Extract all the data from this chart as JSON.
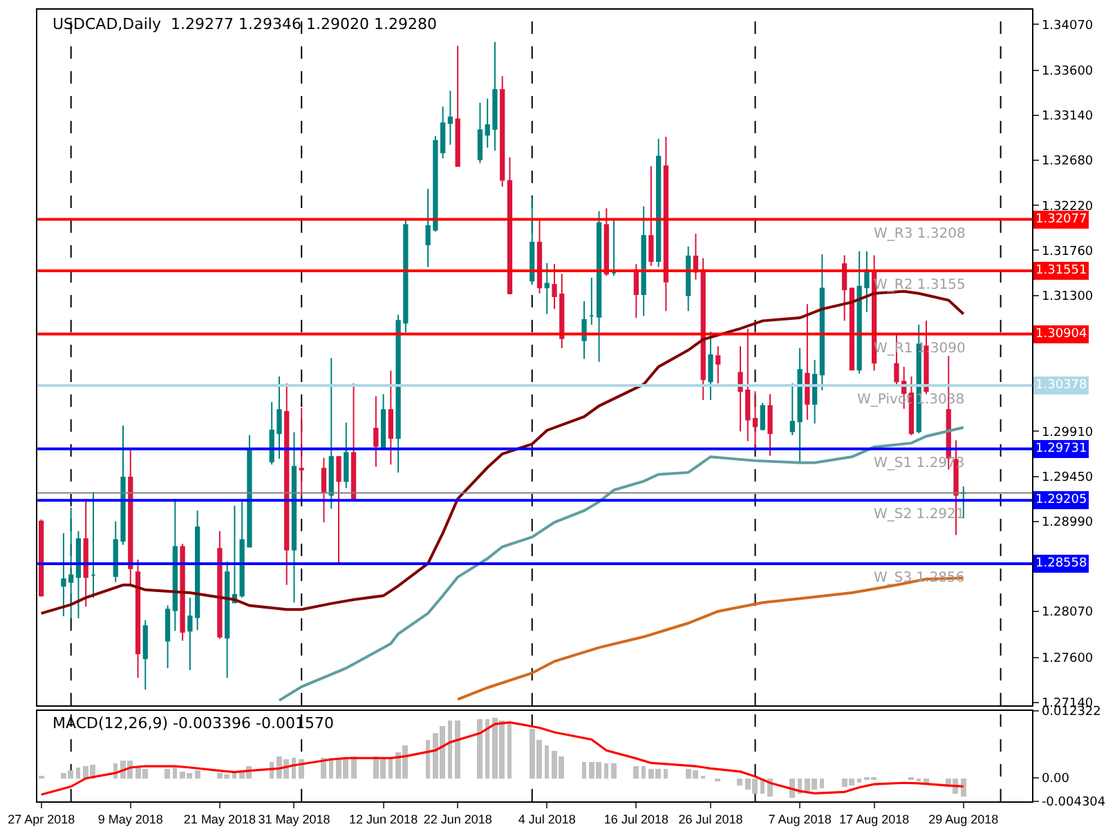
{
  "chart_data": [
    {
      "type": "candlestick",
      "title": "USDCAD,Daily  1.29277 1.29346 1.29020 1.29280",
      "tick_labels": "y",
      "grid": false,
      "colors": [
        "#dc143c",
        "#008080",
        "#008080",
        "#008080",
        "#dc143c",
        "#008080",
        "#008080",
        "#008080",
        "#dc143c",
        "#dc143c",
        "#008080",
        "#008080",
        "#008080",
        "#dc143c",
        "#008080",
        "#008080",
        "#dc143c",
        "#008080",
        "#008080",
        "#008080",
        "#008080",
        "#008080",
        "#008080",
        "#dc143c",
        "#008080",
        "#dc143c",
        "#dc143c",
        "#008080",
        "#dc143c",
        "#008080",
        "#dc143c",
        "#dc143c",
        "#008080",
        "#dc143c",
        "#008080",
        "#008080",
        "#008080",
        "#008080",
        "#008080",
        "#008080",
        "#dc143c",
        "#008080",
        "#008080",
        "#008080",
        "#dc143c",
        "#dc143c",
        "#008080",
        "#dc143c",
        "#008080",
        "#dc143c",
        "#dc143c",
        "#008080",
        "#008080",
        "#008080",
        "#dc143c",
        "#008080",
        "#dc143c",
        "#008080",
        "#dc143c",
        "#008080",
        "#dc143c",
        "#008080",
        "#dc143c",
        "#dc143c",
        "#008080",
        "#dc143c",
        "#dc143c",
        "#dc143c",
        "#dc143c",
        "#008080",
        "#dc143c",
        "#008080",
        "#008080",
        "#dc143c",
        "#008080",
        "#008080",
        "#dc143c",
        "#dc143c",
        "#008080",
        "#008080",
        "#dc143c",
        "#dc143c",
        "#dc143c",
        "#dc143c",
        "#008080",
        "#dc143c",
        "#dc143c",
        "#dc143c",
        "#008080"
      ],
      "annotations": [
        {
          "text": "1.32077",
          "y": 1.32077
        },
        {
          "text": "1.31551",
          "y": 1.31551
        },
        {
          "text": "1.30904",
          "y": 1.30904
        },
        {
          "text": "1.30378",
          "y": 1.30378
        },
        {
          "text": "1.29731",
          "y": 1.29731
        },
        {
          "text": "1.29205",
          "y": 1.29205
        },
        {
          "text": "1.28558",
          "y": 1.28558
        }
      ],
      "x": [
        "2018-04-27",
        "2018-04-30",
        "2018-05-01",
        "2018-05-02",
        "2018-05-03",
        "2018-05-04",
        "2018-05-07",
        "2018-05-08",
        "2018-05-09",
        "2018-05-10",
        "2018-05-11",
        "2018-05-14",
        "2018-05-15",
        "2018-05-16",
        "2018-05-17",
        "2018-05-18",
        "2018-05-21",
        "2018-05-22",
        "2018-05-23",
        "2018-05-24",
        "2018-05-25",
        "2018-05-28",
        "2018-05-29",
        "2018-05-30",
        "2018-05-31",
        "2018-06-01",
        "2018-06-04",
        "2018-06-05",
        "2018-06-06",
        "2018-06-07",
        "2018-06-08",
        "2018-06-11",
        "2018-06-12",
        "2018-06-13",
        "2018-06-14",
        "2018-06-15",
        "2018-06-18",
        "2018-06-19",
        "2018-06-20",
        "2018-06-21",
        "2018-06-22",
        "2018-06-25",
        "2018-06-26",
        "2018-06-27",
        "2018-06-28",
        "2018-06-29",
        "2018-07-02",
        "2018-07-03",
        "2018-07-04",
        "2018-07-05",
        "2018-07-06",
        "2018-07-09",
        "2018-07-10",
        "2018-07-11",
        "2018-07-12",
        "2018-07-13",
        "2018-07-16",
        "2018-07-17",
        "2018-07-18",
        "2018-07-19",
        "2018-07-20",
        "2018-07-23",
        "2018-07-24",
        "2018-07-25",
        "2018-07-26",
        "2018-07-27",
        "2018-07-30",
        "2018-07-31",
        "2018-08-01",
        "2018-08-02",
        "2018-08-03",
        "2018-08-06",
        "2018-08-07",
        "2018-08-08",
        "2018-08-09",
        "2018-08-10",
        "2018-08-13",
        "2018-08-14",
        "2018-08-15",
        "2018-08-16",
        "2018-08-17",
        "2018-08-20",
        "2018-08-21",
        "2018-08-22",
        "2018-08-23",
        "2018-08-24",
        "2018-08-27",
        "2018-08-28",
        "2018-08-29"
      ],
      "ohlc": [
        [
          1.2899,
          1.2901,
          1.2822,
          1.2823
        ],
        [
          1.2833,
          1.2887,
          1.2802,
          1.284
        ],
        [
          1.2837,
          1.2913,
          1.28,
          1.2844
        ],
        [
          1.2842,
          1.2889,
          1.28,
          1.2881
        ],
        [
          1.2881,
          1.2922,
          1.2812,
          1.2842
        ],
        [
          1.2844,
          1.2929,
          1.2821,
          1.2844
        ],
        [
          1.2843,
          1.2899,
          1.2837,
          1.288
        ],
        [
          1.2879,
          1.2997,
          1.2875,
          1.2944
        ],
        [
          1.2944,
          1.2974,
          1.2835,
          1.2851
        ],
        [
          1.2847,
          1.286,
          1.2739,
          1.2764
        ],
        [
          1.2759,
          1.2798,
          1.2727,
          1.2792
        ],
        [
          1.2777,
          1.2813,
          1.2749,
          1.2809
        ],
        [
          1.2808,
          1.2922,
          1.2787,
          1.2873
        ],
        [
          1.2873,
          1.2876,
          1.2777,
          1.2786
        ],
        [
          1.2787,
          1.2821,
          1.2747,
          1.2802
        ],
        [
          1.2801,
          1.291,
          1.2788,
          1.2893
        ],
        [
          1.2871,
          1.2889,
          1.2779,
          1.2781
        ],
        [
          1.278,
          1.2858,
          1.2739,
          1.2847
        ],
        [
          1.2816,
          1.2915,
          1.2816,
          1.2824
        ],
        [
          1.2823,
          1.2919,
          1.2821,
          1.288
        ],
        [
          1.2873,
          1.2987,
          1.2873,
          1.2973
        ],
        [
          1.296,
          1.3021,
          1.2957,
          1.2992
        ],
        [
          1.2989,
          1.3047,
          1.2963,
          1.3013
        ],
        [
          1.3011,
          1.304,
          1.2834,
          1.287
        ],
        [
          1.287,
          1.299,
          1.2816,
          1.2955
        ],
        [
          1.2953,
          1.3015,
          1.2924,
          1.2952
        ],
        [
          1.2953,
          1.2964,
          1.2898,
          1.2929
        ],
        [
          1.2926,
          1.3066,
          1.2912,
          1.2965
        ],
        [
          1.2965,
          1.2965,
          1.2856,
          1.294
        ],
        [
          1.294,
          1.3,
          1.2933,
          1.2969
        ],
        [
          1.2969,
          1.304,
          1.292,
          1.292
        ],
        [
          1.2994,
          1.3027,
          1.2955,
          1.2976
        ],
        [
          1.2974,
          1.3029,
          1.2973,
          1.3013
        ],
        [
          1.3013,
          1.3053,
          1.2957,
          1.2984
        ],
        [
          1.2984,
          1.311,
          1.2949,
          1.3104
        ],
        [
          1.3102,
          1.3209,
          1.3092,
          1.3202
        ],
        [
          1.3182,
          1.3239,
          1.3159,
          1.3201
        ],
        [
          1.3197,
          1.3293,
          1.3195,
          1.3288
        ],
        [
          1.3276,
          1.3323,
          1.327,
          1.3306
        ],
        [
          1.3306,
          1.3339,
          1.3284,
          1.3312
        ],
        [
          1.331,
          1.3385,
          1.3262,
          1.3262
        ],
        [
          1.3269,
          1.3327,
          1.3265,
          1.3299
        ],
        [
          1.3294,
          1.3331,
          1.3281,
          1.3304
        ],
        [
          1.33,
          1.3389,
          1.3278,
          1.334
        ],
        [
          1.334,
          1.3354,
          1.3241,
          1.3248
        ],
        [
          1.3247,
          1.3271,
          1.3131,
          1.3132
        ],
        [
          1.3145,
          1.323,
          1.3141,
          1.3184
        ],
        [
          1.3184,
          1.3208,
          1.3132,
          1.3138
        ],
        [
          1.3138,
          1.3163,
          1.3111,
          1.3142
        ],
        [
          1.3141,
          1.3162,
          1.3116,
          1.3129
        ],
        [
          1.3131,
          1.3152,
          1.3076,
          1.3086
        ],
        [
          1.3084,
          1.3124,
          1.3065,
          1.3105
        ],
        [
          1.3109,
          1.3148,
          1.31,
          1.3109
        ],
        [
          1.3108,
          1.3216,
          1.3062,
          1.3204
        ],
        [
          1.3202,
          1.3219,
          1.315,
          1.3152
        ],
        [
          1.3153,
          1.3209,
          1.315,
          1.3153
        ],
        [
          1.3156,
          1.3162,
          1.3107,
          1.3131
        ],
        [
          1.3131,
          1.3221,
          1.3109,
          1.3191
        ],
        [
          1.3191,
          1.3262,
          1.316,
          1.3165
        ],
        [
          1.3165,
          1.329,
          1.3159,
          1.3272
        ],
        [
          1.3262,
          1.3292,
          1.3114,
          1.3144
        ],
        [
          1.313,
          1.318,
          1.3114,
          1.317
        ],
        [
          1.317,
          1.3193,
          1.3146,
          1.3154
        ],
        [
          1.3156,
          1.3168,
          1.3023,
          1.3044
        ],
        [
          1.3042,
          1.3093,
          1.3023,
          1.3069
        ],
        [
          1.3068,
          1.3078,
          1.304,
          1.306
        ],
        [
          1.3051,
          1.3078,
          1.2991,
          1.3032
        ],
        [
          1.3033,
          1.3096,
          1.2981,
          1.3003
        ],
        [
          1.3004,
          1.3032,
          1.2974,
          1.2996
        ],
        [
          1.2993,
          1.302,
          1.2992,
          1.3017
        ],
        [
          1.3017,
          1.3029,
          1.2966,
          1.2989
        ],
        [
          1.2991,
          1.304,
          1.2987,
          1.3001
        ],
        [
          1.3001,
          1.3076,
          1.296,
          1.3054
        ],
        [
          1.305,
          1.3121,
          1.3003,
          1.3019
        ],
        [
          1.3019,
          1.3064,
          1.2999,
          1.3049
        ],
        [
          1.3049,
          1.3172,
          1.3033,
          1.3137
        ],
        [
          1.3162,
          1.3171,
          1.3104,
          1.3136
        ],
        [
          1.3137,
          1.3138,
          1.3054,
          1.3054
        ],
        [
          1.3054,
          1.3175,
          1.305,
          1.3139
        ],
        [
          1.3138,
          1.3175,
          1.3113,
          1.3156
        ],
        [
          1.3153,
          1.3171,
          1.3053,
          1.3061
        ],
        [
          1.306,
          1.309,
          1.3039,
          1.3042
        ],
        [
          1.3042,
          1.3057,
          1.3014,
          1.303
        ],
        [
          1.303,
          1.3047,
          1.2987,
          1.2989
        ],
        [
          1.2991,
          1.31,
          1.2989,
          1.308
        ],
        [
          1.3078,
          1.3104,
          1.3029,
          1.3032
        ],
        [
          1.3013,
          1.3068,
          1.2952,
          1.2964
        ],
        [
          1.2962,
          1.2982,
          1.2885,
          1.2926
        ],
        [
          1.29277,
          1.29346,
          1.2902,
          1.2928
        ]
      ],
      "series": [
        {
          "type": "line",
          "color": "#800000",
          "x": [
            "2018-04-27",
            "2018-05-01",
            "2018-05-03",
            "2018-05-08",
            "2018-05-09",
            "2018-05-11",
            "2018-05-17",
            "2018-05-23",
            "2018-05-25",
            "2018-05-30",
            "2018-06-01",
            "2018-06-05",
            "2018-06-08",
            "2018-06-12",
            "2018-06-14",
            "2018-06-18",
            "2018-06-20",
            "2018-06-22",
            "2018-06-26",
            "2018-06-28",
            "2018-07-02",
            "2018-07-04",
            "2018-07-09",
            "2018-07-11",
            "2018-07-17",
            "2018-07-19",
            "2018-07-23",
            "2018-07-25",
            "2018-07-30",
            "2018-08-02",
            "2018-08-07",
            "2018-08-10",
            "2018-08-14",
            "2018-08-17",
            "2018-08-21",
            "2018-08-23",
            "2018-08-27",
            "2018-08-29"
          ],
          "values": [
            1.2805,
            1.2814,
            1.2821,
            1.2834,
            1.2834,
            1.2829,
            1.2826,
            1.2819,
            1.2813,
            1.2809,
            1.2809,
            1.2815,
            1.2819,
            1.2823,
            1.2833,
            1.2856,
            1.2887,
            1.2922,
            1.2954,
            1.2968,
            1.2978,
            1.2992,
            1.3006,
            1.3017,
            1.3039,
            1.3057,
            1.3074,
            1.3085,
            1.3096,
            1.3104,
            1.3107,
            1.3116,
            1.3123,
            1.3132,
            1.3134,
            1.3132,
            1.3125,
            1.3111
          ]
        },
        {
          "type": "line",
          "color": "#5f9ea0",
          "x": [
            "2018-05-29",
            "2018-06-01",
            "2018-06-07",
            "2018-06-13",
            "2018-06-14",
            "2018-06-18",
            "2018-06-20",
            "2018-06-22",
            "2018-06-26",
            "2018-06-28",
            "2018-07-02",
            "2018-07-05",
            "2018-07-09",
            "2018-07-11",
            "2018-07-13",
            "2018-07-17",
            "2018-07-19",
            "2018-07-23",
            "2018-07-26",
            "2018-08-01",
            "2018-08-07",
            "2018-08-09",
            "2018-08-14",
            "2018-08-17",
            "2018-08-22",
            "2018-08-24",
            "2018-08-29"
          ],
          "values": [
            1.2716,
            1.273,
            1.2749,
            1.2774,
            1.2784,
            1.2805,
            1.2823,
            1.2842,
            1.2861,
            1.2873,
            1.2883,
            1.2898,
            1.291,
            1.2919,
            1.2931,
            1.294,
            1.2947,
            1.2949,
            1.2965,
            1.2961,
            1.2959,
            1.2959,
            1.2965,
            1.2975,
            1.2979,
            1.2986,
            1.2995
          ]
        },
        {
          "type": "line",
          "color": "#d2691e",
          "x": [
            "2018-06-22",
            "2018-06-26",
            "2018-07-02",
            "2018-07-05",
            "2018-07-11",
            "2018-07-17",
            "2018-07-23",
            "2018-07-27",
            "2018-08-02",
            "2018-08-08",
            "2018-08-14",
            "2018-08-20",
            "2018-08-24",
            "2018-08-29"
          ],
          "values": [
            1.2717,
            1.2729,
            1.2744,
            1.2756,
            1.277,
            1.2781,
            1.2795,
            1.2807,
            1.2816,
            1.2821,
            1.2826,
            1.2834,
            1.284,
            1.2841
          ]
        }
      ],
      "xlim": [
        "2018-04-26T12:00",
        "2018-09-07T06:00"
      ],
      "ylim": [
        1.2711,
        1.3422
      ],
      "yticks": [
        {
          "value": 1.3407,
          "label": "1.34070"
        },
        {
          "value": 1.336,
          "label": "1.33600"
        },
        {
          "value": 1.3314,
          "label": "1.33140"
        },
        {
          "value": 1.3268,
          "label": "1.32680"
        },
        {
          "value": 1.3222,
          "label": "1.32220"
        },
        {
          "value": 1.3176,
          "label": "1.31760"
        },
        {
          "value": 1.313,
          "label": "1.31300"
        },
        {
          "value": 1.2991,
          "label": "1.29910"
        },
        {
          "value": 1.2945,
          "label": "1.29450"
        },
        {
          "value": 1.2899,
          "label": "1.28990"
        },
        {
          "value": 1.2807,
          "label": "1.28070"
        },
        {
          "value": 1.276,
          "label": "1.27600"
        },
        {
          "value": 1.2714,
          "label": "1.27140"
        }
      ],
      "ref_lines": [
        {
          "axis": "y",
          "value": 1.32077,
          "label": "W_R3 1.3208",
          "color": "#ff0000"
        },
        {
          "axis": "y",
          "value": 1.31551,
          "label": "W_R2 1.3155",
          "color": "#ff0000"
        },
        {
          "axis": "y",
          "value": 1.30904,
          "label": "W_R1 1.3090",
          "color": "#ff0000"
        },
        {
          "axis": "y",
          "value": 1.30378,
          "label": "W_Pivot 1.3038",
          "color": "#add8e6"
        },
        {
          "axis": "y",
          "value": 1.29731,
          "label": "W_S1 1.2973",
          "color": "#0000ff"
        },
        {
          "axis": "y",
          "value": 1.29205,
          "label": "W_S2 1.2921",
          "color": "#0000ff"
        },
        {
          "axis": "y",
          "value": 1.28558,
          "label": "W_S3 1.2856",
          "color": "#0000ff"
        },
        {
          "axis": "y",
          "value": 1.2928,
          "color": "#808080"
        },
        {
          "axis": "x",
          "value": "2018-05-01",
          "color": "#000000",
          "line_style": "dashed"
        },
        {
          "axis": "x",
          "value": "2018-06-01",
          "color": "#000000",
          "line_style": "dashed"
        },
        {
          "axis": "x",
          "value": "2018-07-02",
          "color": "#000000",
          "line_style": "dashed"
        },
        {
          "axis": "x",
          "value": "2018-08-01",
          "color": "#000000",
          "line_style": "dashed"
        },
        {
          "axis": "x",
          "value": "2018-09-03",
          "color": "#000000",
          "line_style": "dashed"
        }
      ]
    },
    {
      "type": "bar",
      "title": "MACD(12,26,9) -0.003396 -0.001570",
      "grid": false,
      "x": [
        "2018-04-27",
        "2018-04-30",
        "2018-05-01",
        "2018-05-02",
        "2018-05-03",
        "2018-05-04",
        "2018-05-07",
        "2018-05-08",
        "2018-05-09",
        "2018-05-10",
        "2018-05-11",
        "2018-05-14",
        "2018-05-15",
        "2018-05-16",
        "2018-05-17",
        "2018-05-18",
        "2018-05-21",
        "2018-05-22",
        "2018-05-23",
        "2018-05-24",
        "2018-05-25",
        "2018-05-28",
        "2018-05-29",
        "2018-05-30",
        "2018-05-31",
        "2018-06-01",
        "2018-06-04",
        "2018-06-05",
        "2018-06-06",
        "2018-06-07",
        "2018-06-08",
        "2018-06-11",
        "2018-06-12",
        "2018-06-13",
        "2018-06-14",
        "2018-06-15",
        "2018-06-18",
        "2018-06-19",
        "2018-06-20",
        "2018-06-21",
        "2018-06-22",
        "2018-06-25",
        "2018-06-26",
        "2018-06-27",
        "2018-06-28",
        "2018-06-29",
        "2018-07-02",
        "2018-07-03",
        "2018-07-04",
        "2018-07-05",
        "2018-07-06",
        "2018-07-09",
        "2018-07-10",
        "2018-07-11",
        "2018-07-12",
        "2018-07-13",
        "2018-07-16",
        "2018-07-17",
        "2018-07-18",
        "2018-07-19",
        "2018-07-20",
        "2018-07-23",
        "2018-07-24",
        "2018-07-25",
        "2018-07-26",
        "2018-07-27",
        "2018-07-30",
        "2018-07-31",
        "2018-08-01",
        "2018-08-02",
        "2018-08-03",
        "2018-08-06",
        "2018-08-07",
        "2018-08-08",
        "2018-08-09",
        "2018-08-10",
        "2018-08-13",
        "2018-08-14",
        "2018-08-15",
        "2018-08-16",
        "2018-08-17",
        "2018-08-20",
        "2018-08-21",
        "2018-08-22",
        "2018-08-23",
        "2018-08-24",
        "2018-08-27",
        "2018-08-28",
        "2018-08-29"
      ],
      "series": [
        {
          "type": "bar",
          "color": "#c0c0c0",
          "values": [
            0.00025,
            0.00091,
            0.00149,
            0.00191,
            0.00216,
            0.00232,
            0.00274,
            0.00315,
            0.00315,
            0.00216,
            0.00158,
            0.00158,
            0.00199,
            0.00116,
            0.00091,
            0.00149,
            0.00091,
            0.00066,
            0.00116,
            0.00149,
            0.00216,
            0.00299,
            0.00398,
            0.00357,
            0.00365,
            0.00357,
            0.00365,
            0.00365,
            0.00382,
            0.00382,
            0.00398,
            0.00398,
            0.00365,
            0.00382,
            0.00465,
            0.00589,
            0.00689,
            0.00838,
            0.00946,
            0.01046,
            0.01046,
            0.01071,
            0.01087,
            0.01112,
            0.01062,
            0.01004,
            0.00905,
            0.00689,
            0.00606,
            0.00506,
            0.00407,
            0.00299,
            0.00299,
            0.00299,
            0.00274,
            0.00257,
            0.00216,
            0.00216,
            0.00174,
            0.00174,
            0.00174,
            0.00174,
            0.00133,
            0.0005,
            null,
            -0.00058,
            -0.00141,
            -0.00224,
            -0.00282,
            -0.00299,
            -0.0034,
            -0.00365,
            -0.00282,
            -0.00241,
            -0.00224,
            -0.00199,
            -0.00158,
            -0.00141,
            -0.00075,
            -0.00033,
            -0.00033,
            null,
            null,
            -0.00033,
            -0.00058,
            -0.00116,
            -0.00174,
            -0.00282,
            -0.003396
          ]
        },
        {
          "type": "line",
          "color": "#ff0000",
          "x": [
            "2018-04-27",
            "2018-05-01",
            "2018-05-03",
            "2018-05-07",
            "2018-05-09",
            "2018-05-11",
            "2018-05-15",
            "2018-05-17",
            "2018-05-21",
            "2018-05-23",
            "2018-05-25",
            "2018-05-29",
            "2018-05-31",
            "2018-06-05",
            "2018-06-07",
            "2018-06-13",
            "2018-06-15",
            "2018-06-19",
            "2018-06-21",
            "2018-06-25",
            "2018-06-27",
            "2018-06-29",
            "2018-07-03",
            "2018-07-05",
            "2018-07-10",
            "2018-07-12",
            "2018-07-16",
            "2018-07-18",
            "2018-07-20",
            "2018-07-24",
            "2018-07-26",
            "2018-07-30",
            "2018-08-01",
            "2018-08-03",
            "2018-08-07",
            "2018-08-09",
            "2018-08-13",
            "2018-08-15",
            "2018-08-17",
            "2018-08-21",
            "2018-08-23",
            "2018-08-27",
            "2018-08-29"
          ],
          "values": [
            -0.00307,
            -0.00158,
            -8e-05,
            0.00091,
            0.00191,
            0.00216,
            0.00216,
            0.00191,
            0.00133,
            0.00108,
            0.00133,
            0.00174,
            0.00232,
            0.0034,
            0.00365,
            0.00365,
            0.00398,
            0.00506,
            0.00656,
            0.00822,
            0.00988,
            0.01021,
            0.00921,
            0.00838,
            0.00706,
            0.00506,
            0.00357,
            0.00274,
            0.00257,
            0.00216,
            0.00174,
            0.00116,
            0.00025,
            -0.00091,
            -0.00241,
            -0.00282,
            -0.00257,
            -0.00174,
            -0.00116,
            -0.00091,
            -0.001,
            -0.00141,
            -0.00157
          ]
        }
      ],
      "xlim": [
        "2018-04-26T12:00",
        "2018-09-07T06:00"
      ],
      "xticks": [
        {
          "value": "2018-04-27",
          "label": "27 Apr 2018"
        },
        {
          "value": "2018-05-09",
          "label": "9 May 2018"
        },
        {
          "value": "2018-05-21",
          "label": "21 May 2018"
        },
        {
          "value": "2018-05-31",
          "label": "31 May 2018"
        },
        {
          "value": "2018-06-12",
          "label": "12 Jun 2018"
        },
        {
          "value": "2018-06-22",
          "label": "22 Jun 2018"
        },
        {
          "value": "2018-07-04",
          "label": "4 Jul 2018"
        },
        {
          "value": "2018-07-16",
          "label": "16 Jul 2018"
        },
        {
          "value": "2018-07-26",
          "label": "26 Jul 2018"
        },
        {
          "value": "2018-08-07",
          "label": "7 Aug 2018"
        },
        {
          "value": "2018-08-17",
          "label": "17 Aug 2018"
        },
        {
          "value": "2018-08-29",
          "label": "29 Aug 2018"
        }
      ],
      "ylim": [
        -0.004304,
        0.012322
      ],
      "yticks": [
        0.012322,
        {
          "value": 0,
          "label": "0.00"
        },
        -0.004304
      ],
      "ref_lines": [
        {
          "axis": "x",
          "value": "2018-05-01",
          "color": "#000000",
          "line_style": "dashed"
        },
        {
          "axis": "x",
          "value": "2018-06-01",
          "color": "#000000",
          "line_style": "dashed"
        },
        {
          "axis": "x",
          "value": "2018-07-02",
          "color": "#000000",
          "line_style": "dashed"
        },
        {
          "axis": "x",
          "value": "2018-08-01",
          "color": "#000000",
          "line_style": "dashed"
        },
        {
          "axis": "x",
          "value": "2018-09-03",
          "color": "#000000",
          "line_style": "dashed"
        }
      ]
    }
  ]
}
